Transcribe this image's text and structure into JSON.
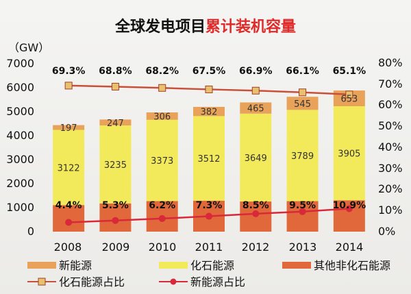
{
  "chart_data": {
    "type": "bar",
    "title_part1": "全球发电项目",
    "title_part2": "累计装机容量",
    "ylabel": "（GW）",
    "categories": [
      "2008",
      "2009",
      "2010",
      "2011",
      "2012",
      "2013",
      "2014"
    ],
    "ylim": [
      0,
      7000
    ],
    "yticks": [
      "0",
      "1000",
      "2000",
      "3000",
      "4000",
      "5000",
      "6000",
      "7000"
    ],
    "y2lim": [
      0,
      80
    ],
    "y2ticks": [
      "0%",
      "10%",
      "20%",
      "30%",
      "40%",
      "50%",
      "60%",
      "70%",
      "80%"
    ],
    "series": [
      {
        "name": "其他非化石能源",
        "values": [
          1104,
          1173,
          1271,
          1286,
          1251,
          1266,
          1302
        ]
      },
      {
        "name": "化石能源",
        "values": [
          3122,
          3235,
          3373,
          3512,
          3649,
          3789,
          3905
        ]
      },
      {
        "name": "新能源",
        "values": [
          197,
          247,
          306,
          382,
          465,
          545,
          653
        ]
      }
    ],
    "fossil_labels": [
      "3122",
      "3235",
      "3373",
      "3512",
      "3649",
      "3789",
      "3905"
    ],
    "new_labels": [
      "197",
      "247",
      "306",
      "382",
      "465",
      "545",
      "653"
    ],
    "lines": [
      {
        "name": "化石能源占比",
        "values": [
          69.3,
          68.8,
          68.2,
          67.5,
          66.9,
          66.1,
          65.1
        ],
        "labels": [
          "69.3%",
          "68.8%",
          "68.2%",
          "67.5%",
          "66.9%",
          "66.1%",
          "65.1%"
        ]
      },
      {
        "name": "新能源占比",
        "values": [
          4.4,
          5.3,
          6.2,
          7.3,
          8.5,
          9.5,
          10.9
        ],
        "labels": [
          "4.4%",
          "5.3%",
          "6.2%",
          "7.3%",
          "8.5%",
          "9.5%",
          "10.9%"
        ]
      }
    ],
    "legend": [
      "新能源",
      "化石能源",
      "其他非化石能源",
      "化石能源占比",
      "新能源占比"
    ],
    "colors": {
      "other": "#e0683a",
      "fossil": "#f2ea5a",
      "new": "#e8a25a",
      "fossil_line": "#c8503a",
      "new_line": "#d8283a",
      "title_red": "#e02a2a"
    }
  }
}
